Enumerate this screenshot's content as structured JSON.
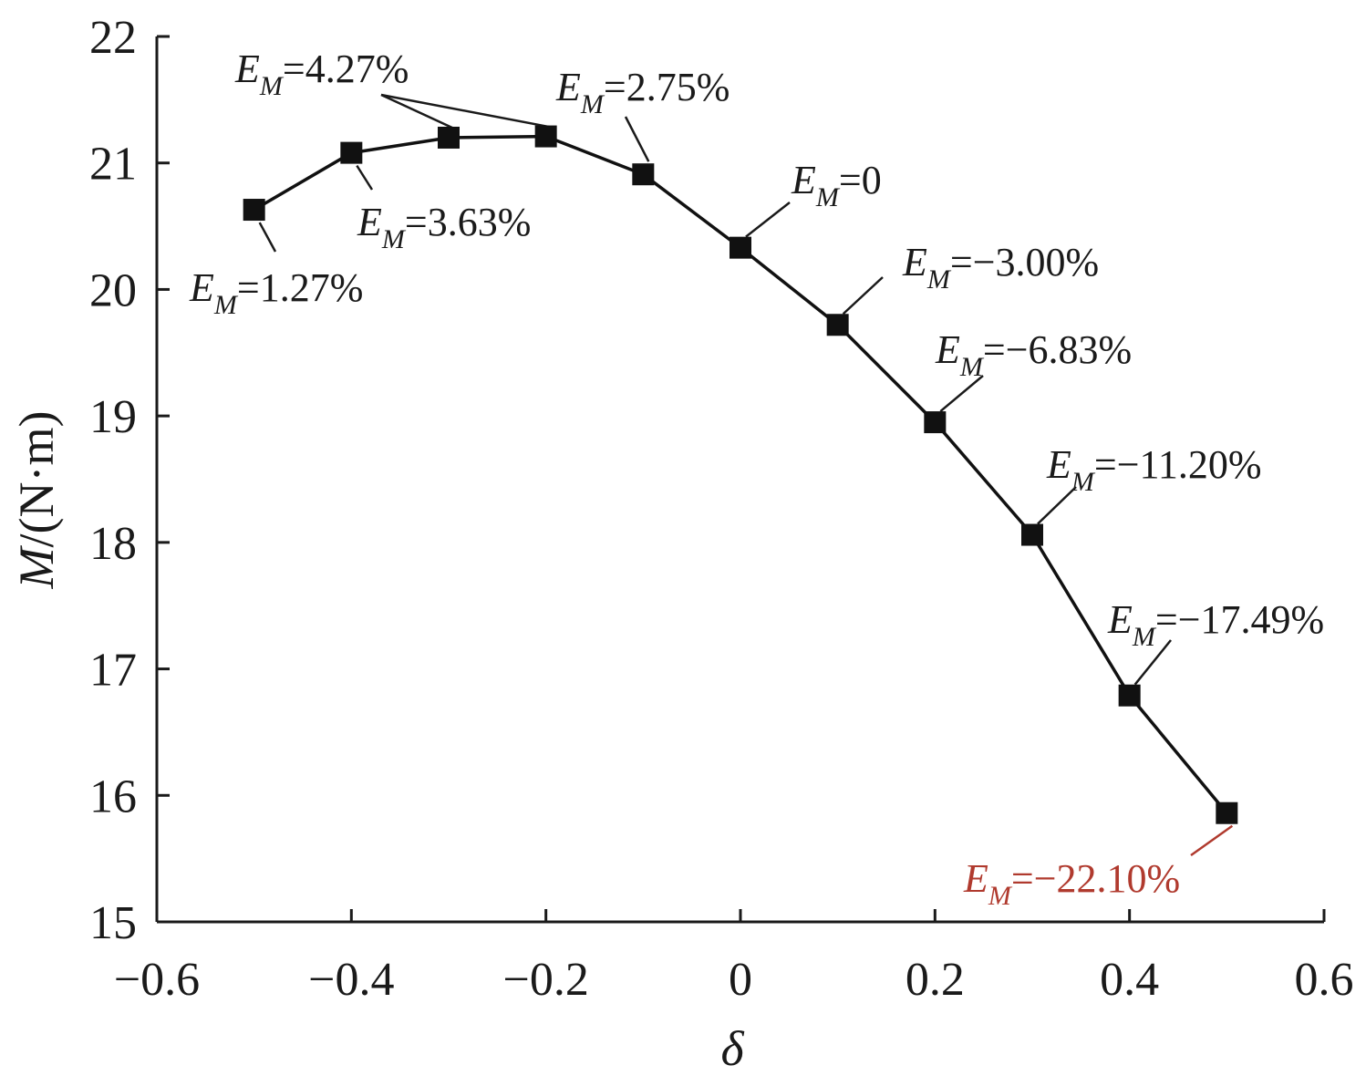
{
  "chart_data": {
    "type": "line",
    "xlabel": "δ",
    "ylabel": {
      "var": "M",
      "unit": "/(N·m)"
    },
    "xlim": [
      -0.6,
      0.6
    ],
    "ylim": [
      15,
      22
    ],
    "xticks": [
      -0.6,
      -0.4,
      -0.2,
      0,
      0.2,
      0.4,
      0.6
    ],
    "xtick_labels": [
      "−0.6",
      "−0.4",
      "−0.2",
      "0",
      "0.2",
      "0.4",
      "0.6"
    ],
    "yticks": [
      15,
      16,
      17,
      18,
      19,
      20,
      21,
      22
    ],
    "ytick_labels": [
      "15",
      "16",
      "17",
      "18",
      "19",
      "20",
      "21",
      "22"
    ],
    "grid": false,
    "marker": "square",
    "series": [
      {
        "x": [
          -0.5,
          -0.4,
          -0.3,
          -0.2,
          -0.1,
          0.0,
          0.1,
          0.2,
          0.3,
          0.4,
          0.5
        ],
        "y": [
          20.63,
          21.08,
          21.2,
          21.21,
          20.91,
          20.33,
          19.72,
          18.95,
          18.06,
          16.79,
          15.86
        ],
        "color": "#111111"
      }
    ],
    "annotations": [
      {
        "letter": "E",
        "sub": "M",
        "text": "=1.27%",
        "color": "#1a1a1a"
      },
      {
        "letter": "E",
        "sub": "M",
        "text": "=3.63%",
        "color": "#1a1a1a"
      },
      {
        "letter": "E",
        "sub": "M",
        "text": "=4.27%",
        "color": "#1a1a1a"
      },
      {
        "letter": "E",
        "sub": "M",
        "text": "=2.75%",
        "color": "#1a1a1a"
      },
      {
        "letter": "E",
        "sub": "M",
        "text": "=0",
        "color": "#1a1a1a"
      },
      {
        "letter": "E",
        "sub": "M",
        "text": "=−3.00%",
        "color": "#1a1a1a"
      },
      {
        "letter": "E",
        "sub": "M",
        "text": "=−6.83%",
        "color": "#1a1a1a"
      },
      {
        "letter": "E",
        "sub": "M",
        "text": "=−11.20%",
        "color": "#1a1a1a"
      },
      {
        "letter": "E",
        "sub": "M",
        "text": "=−17.49%",
        "color": "#1a1a1a"
      },
      {
        "letter": "E",
        "sub": "M",
        "text": "=−22.10%",
        "color": "#b03a2e"
      }
    ]
  }
}
